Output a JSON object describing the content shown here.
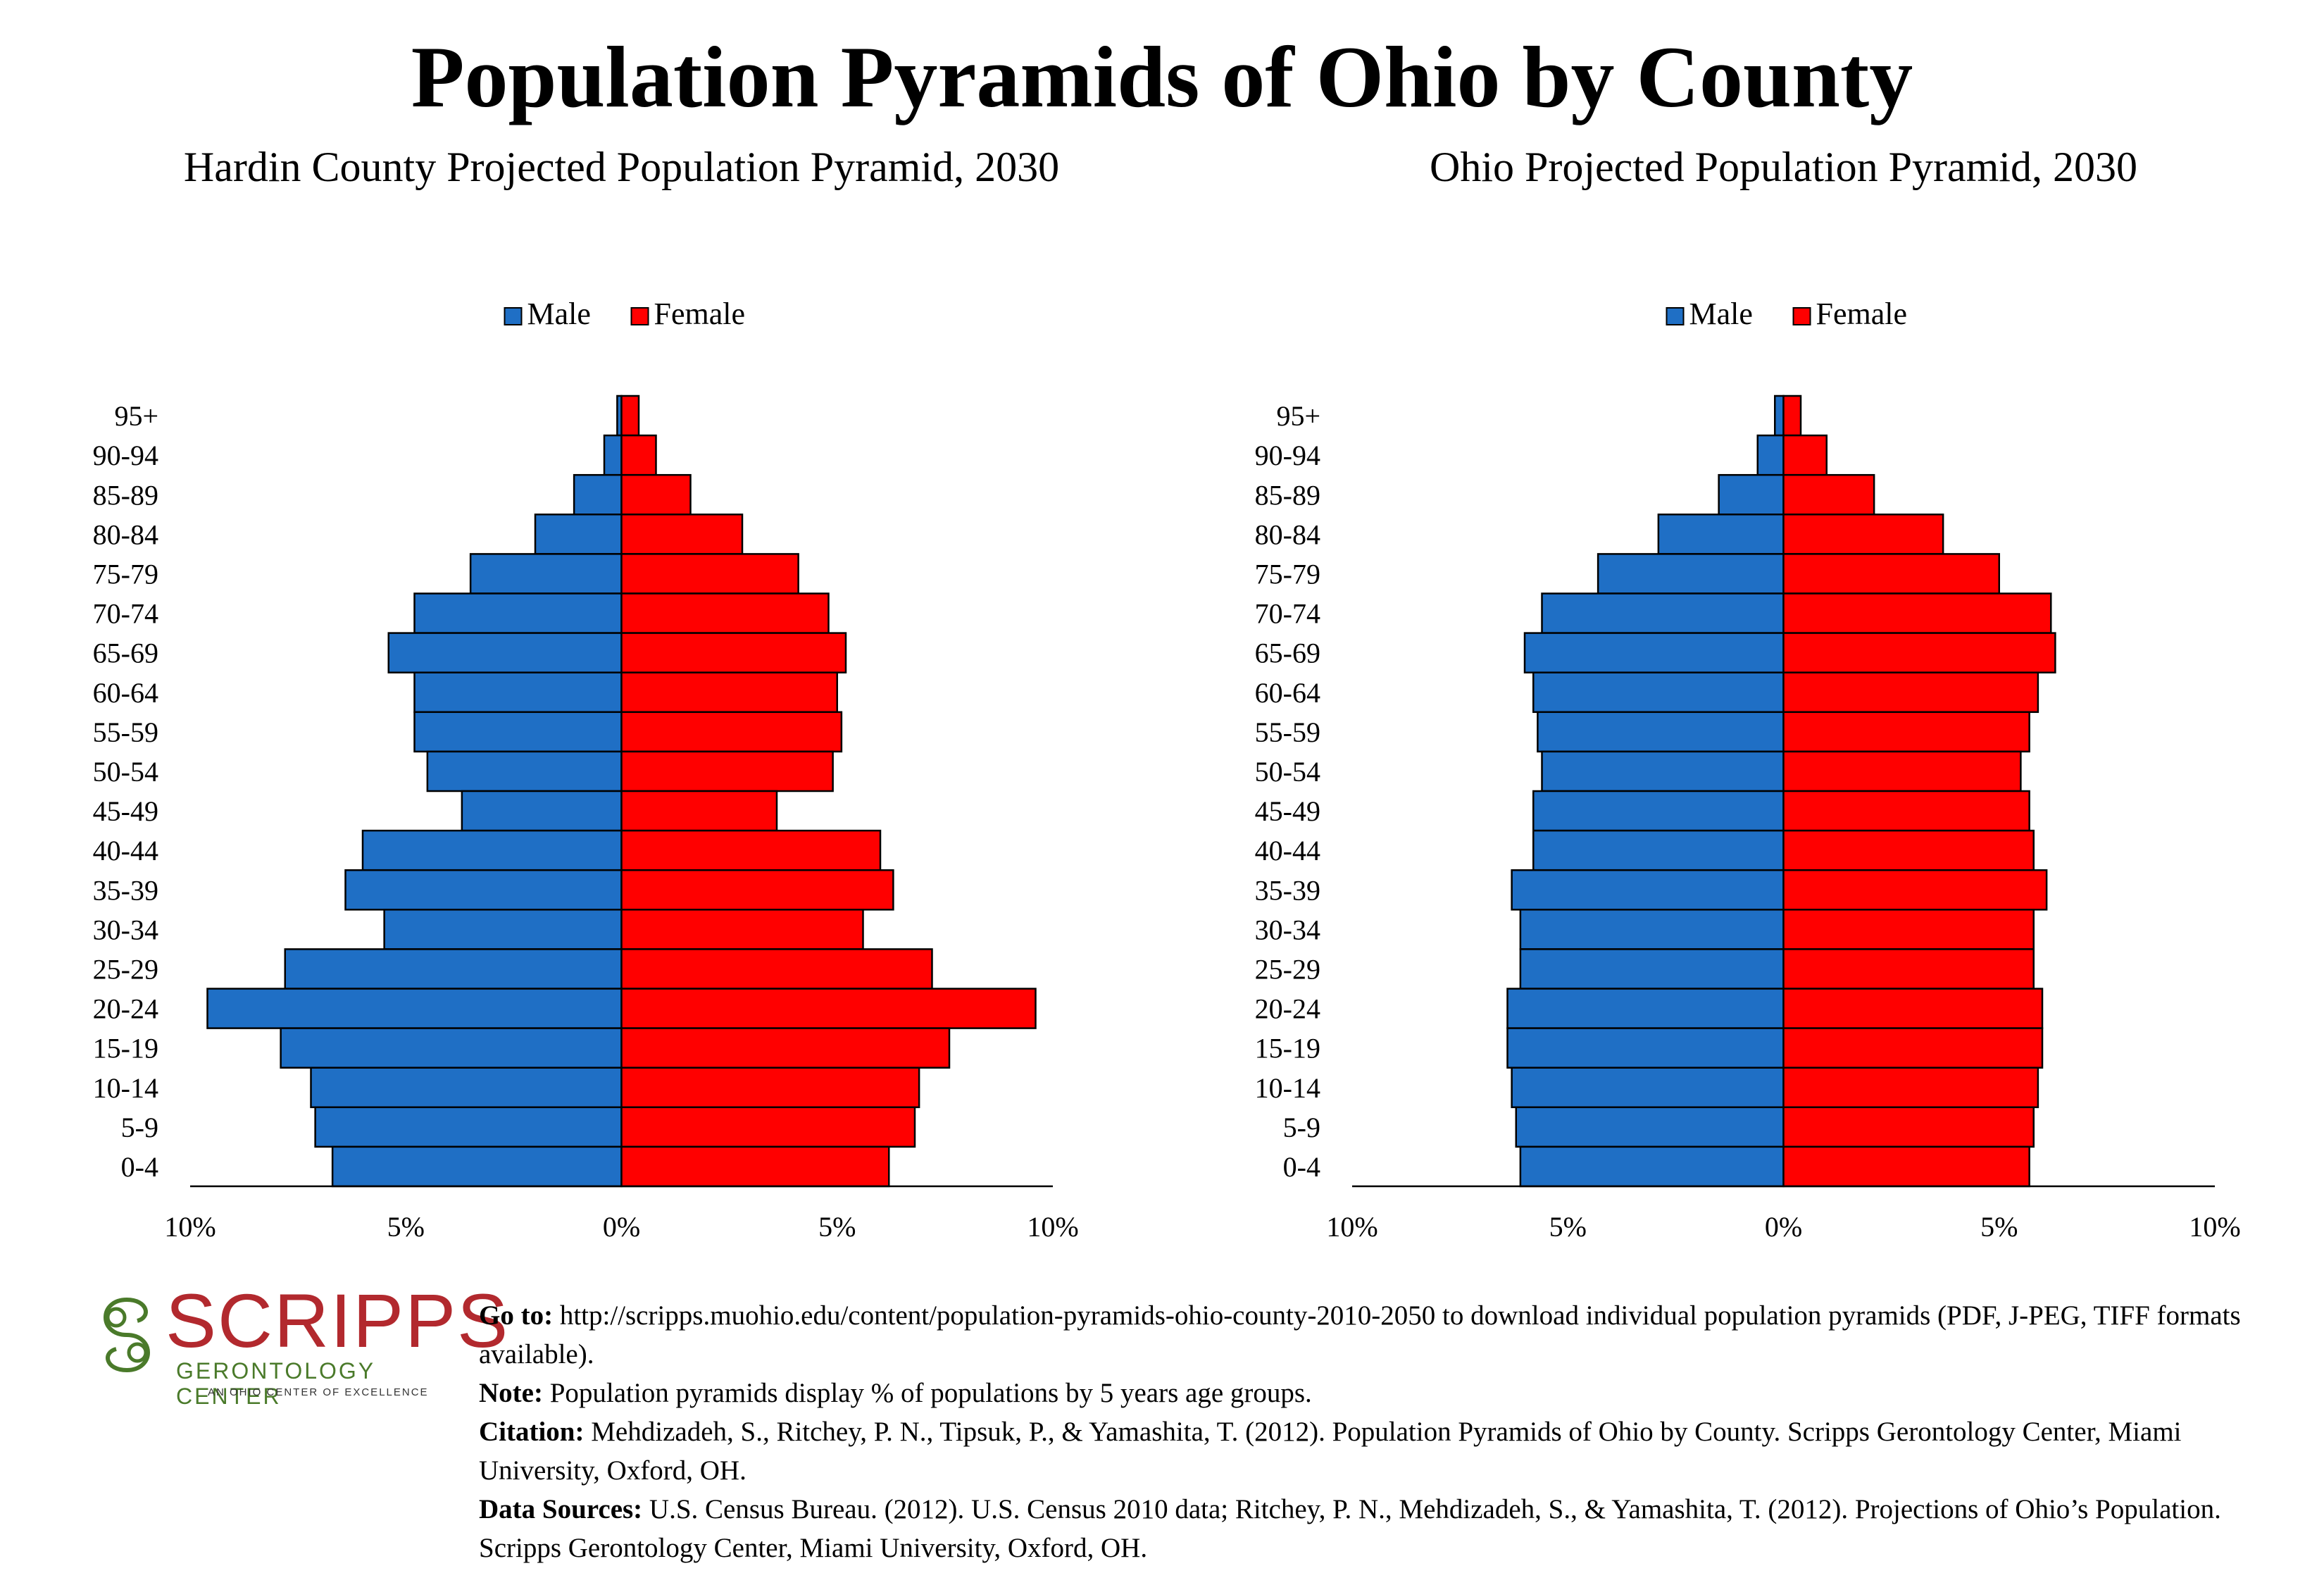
{
  "title": "Population Pyramids of Ohio by County",
  "legend": {
    "male": "Male",
    "female": "Female"
  },
  "colors": {
    "male": "#1f6fc5",
    "female": "#ff0000",
    "outline": "#000000"
  },
  "chart_data": [
    {
      "type": "bar",
      "orientation": "horizontal-pyramid",
      "title": "Hardin County Projected Population Pyramid, 2030",
      "categories": [
        "95+",
        "90-94",
        "85-89",
        "80-84",
        "75-79",
        "70-74",
        "65-69",
        "60-64",
        "55-59",
        "50-54",
        "45-49",
        "40-44",
        "35-39",
        "30-34",
        "25-29",
        "20-24",
        "15-19",
        "10-14",
        "5-9",
        "0-4"
      ],
      "series": [
        {
          "name": "Male",
          "values": [
            0.1,
            0.4,
            1.1,
            2.0,
            3.5,
            4.8,
            5.4,
            4.8,
            4.8,
            4.5,
            3.7,
            6.0,
            6.4,
            5.5,
            7.8,
            9.6,
            7.9,
            7.2,
            7.1,
            6.7
          ]
        },
        {
          "name": "Female",
          "values": [
            0.4,
            0.8,
            1.6,
            2.8,
            4.1,
            4.8,
            5.2,
            5.0,
            5.1,
            4.9,
            3.6,
            6.0,
            6.3,
            5.6,
            7.2,
            9.6,
            7.6,
            6.9,
            6.8,
            6.2
          ]
        }
      ],
      "xticks": [
        "10%",
        "5%",
        "0%",
        "5%",
        "10%"
      ],
      "xlim": [
        -10,
        10
      ],
      "legend_position": "top-center",
      "grid": false
    },
    {
      "type": "bar",
      "orientation": "horizontal-pyramid",
      "title": "Ohio Projected Population Pyramid, 2030",
      "categories": [
        "95+",
        "90-94",
        "85-89",
        "80-84",
        "75-79",
        "70-74",
        "65-69",
        "60-64",
        "55-59",
        "50-54",
        "45-49",
        "40-44",
        "35-39",
        "30-34",
        "25-29",
        "20-24",
        "15-19",
        "10-14",
        "5-9",
        "0-4"
      ],
      "series": [
        {
          "name": "Male",
          "values": [
            0.2,
            0.6,
            1.5,
            2.9,
            4.3,
            5.6,
            6.0,
            5.8,
            5.7,
            5.6,
            5.8,
            5.8,
            6.3,
            6.1,
            6.1,
            6.4,
            6.4,
            6.3,
            6.2,
            6.1
          ]
        },
        {
          "name": "Female",
          "values": [
            0.4,
            1.0,
            2.1,
            3.7,
            5.0,
            6.2,
            6.3,
            5.9,
            5.7,
            5.5,
            5.7,
            5.8,
            6.1,
            5.8,
            5.8,
            6.0,
            6.0,
            5.9,
            5.8,
            5.7
          ]
        }
      ],
      "xticks": [
        "10%",
        "5%",
        "0%",
        "5%",
        "10%"
      ],
      "xlim": [
        -10,
        10
      ],
      "legend_position": "top-center",
      "grid": false
    }
  ],
  "logo": {
    "name": "SCRIPPS",
    "subtitle": "GERONTOLOGY CENTER",
    "tagline": "AN OHIO CENTER OF EXCELLENCE",
    "colors": {
      "name": "#b2292e",
      "subtitle": "#4a7a2a"
    }
  },
  "notes": {
    "goto_label": "Go to:",
    "goto_text": " http://scripps.muohio.edu/content/population-pyramids-ohio-county-2010-2050 to download individual population pyramids (PDF, J-PEG, TIFF formats available).",
    "note_label": "Note:",
    "note_text": " Population pyramids display % of populations by 5 years age groups.",
    "citation_label": "Citation:",
    "citation_text": " Mehdizadeh, S., Ritchey, P. N., Tipsuk, P., & Yamashita, T. (2012). Population Pyramids of Ohio by County. Scripps Gerontology Center, Miami University, Oxford, OH.",
    "sources_label": "Data Sources:",
    "sources_text": " U.S. Census Bureau. (2012). U.S. Census 2010 data; Ritchey, P. N., Mehdizadeh, S., & Yamashita, T. (2012). Projections of Ohio’s Population. Scripps Gerontology Center, Miami University, Oxford, OH."
  }
}
